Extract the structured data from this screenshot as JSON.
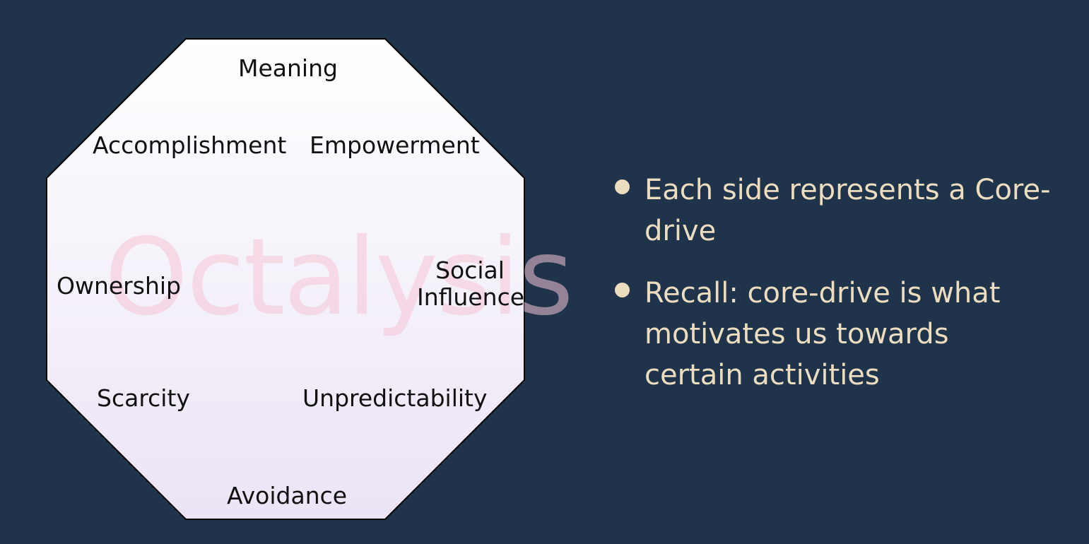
{
  "octalysis": {
    "watermark": "Octalysis",
    "drives": {
      "meaning": "Meaning",
      "accomplishment": "Accomplishment",
      "empowerment": "Empowerment",
      "ownership": "Ownership",
      "social_line1": "Social",
      "social_line2": "Influence",
      "scarcity": "Scarcity",
      "unpredictability": "Unpredictability",
      "avoidance": "Avoidance"
    }
  },
  "bullets": [
    {
      "text": "Each side represents a Core-drive"
    },
    {
      "text": "Recall: core-drive is what motivates us towards certain activities"
    }
  ],
  "colors": {
    "background": "#1f334a",
    "bullet_text": "#ecdcc0",
    "watermark": "#f4c4d6",
    "octagon_fill_top": "#ffffff",
    "octagon_fill_bottom": "#ece4f6"
  }
}
